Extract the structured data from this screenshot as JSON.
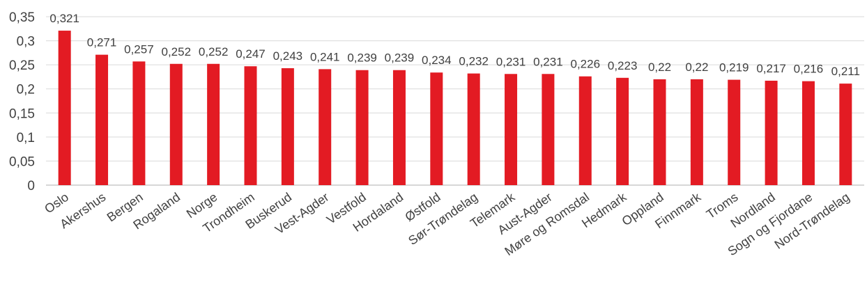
{
  "chart_data": {
    "type": "bar",
    "title": "",
    "xlabel": "",
    "ylabel": "",
    "ylim": [
      0,
      0.35
    ],
    "yticks": [
      "0",
      "0,05",
      "0,1",
      "0,15",
      "0,2",
      "0,25",
      "0,3",
      "0,35"
    ],
    "grid": true,
    "legend": "none",
    "bar_color": "#e31b23",
    "categories": [
      "Oslo",
      "Akershus",
      "Bergen",
      "Rogaland",
      "Norge",
      "Trondheim",
      "Buskerud",
      "Vest-Agder",
      "Vestfold",
      "Hordaland",
      "Østfold",
      "Sør-Trøndelag",
      "Telemark",
      "Aust-Agder",
      "Møre og Romsdal",
      "Hedmark",
      "Oppland",
      "Finnmark",
      "Troms",
      "Nordland",
      "Sogn og Fjordane",
      "Nord-Trøndelag"
    ],
    "values": [
      0.321,
      0.271,
      0.257,
      0.252,
      0.252,
      0.247,
      0.243,
      0.241,
      0.239,
      0.239,
      0.234,
      0.232,
      0.231,
      0.231,
      0.226,
      0.223,
      0.22,
      0.22,
      0.219,
      0.217,
      0.216,
      0.211
    ],
    "value_labels": [
      "0,321",
      "0,271",
      "0,257",
      "0,252",
      "0,252",
      "0,247",
      "0,243",
      "0,241",
      "0,239",
      "0,239",
      "0,234",
      "0,232",
      "0,231",
      "0,231",
      "0,226",
      "0,223",
      "0,22",
      "0,22",
      "0,219",
      "0,217",
      "0,216",
      "0,211"
    ]
  }
}
